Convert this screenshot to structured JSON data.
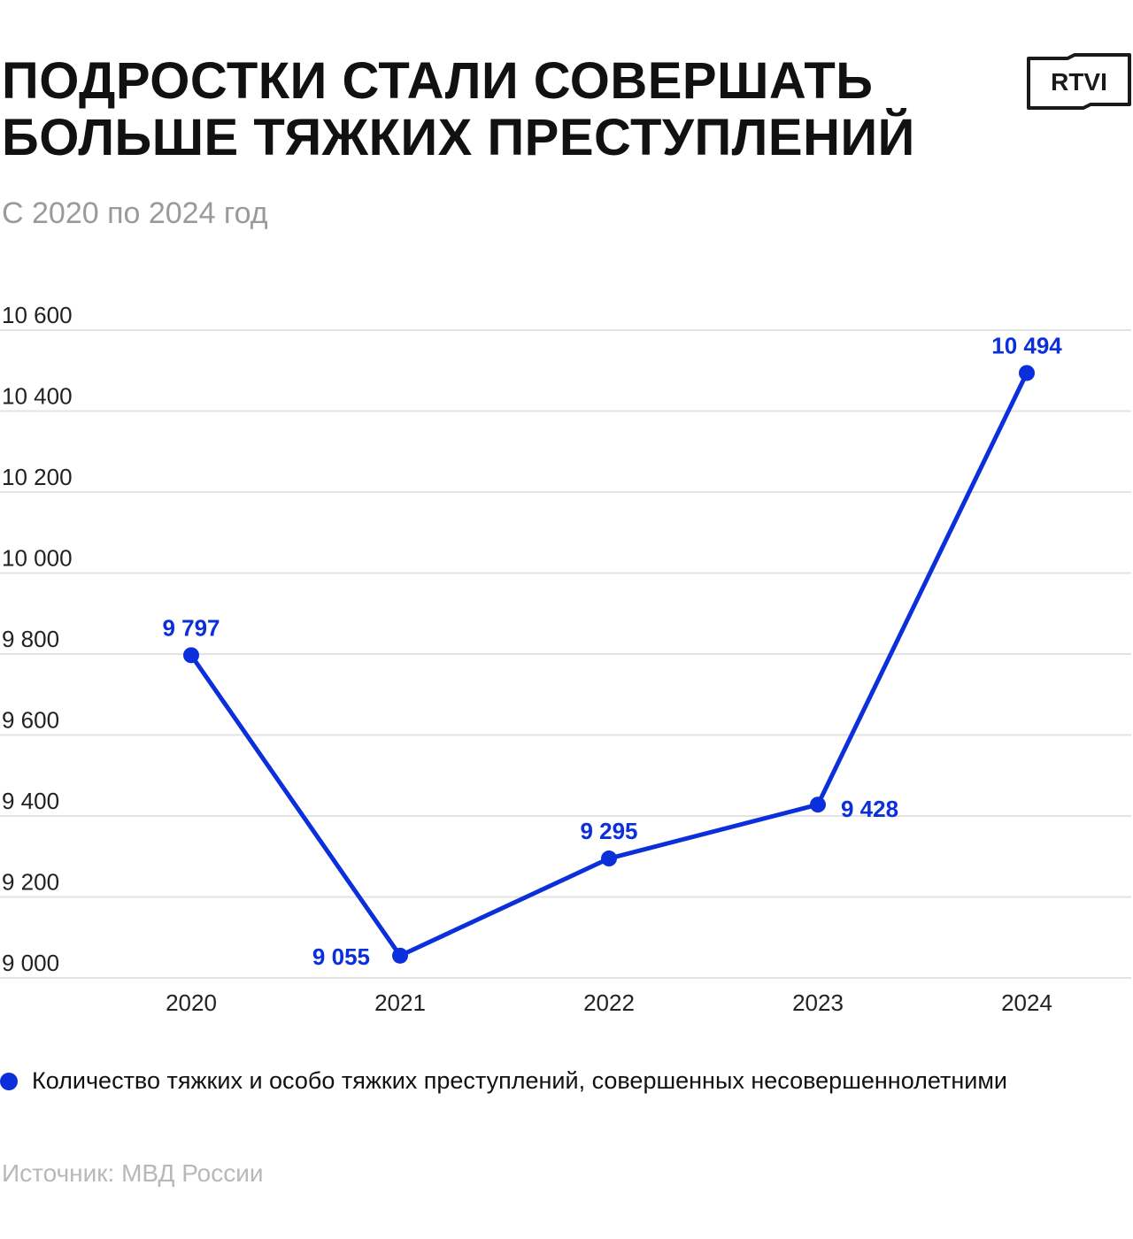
{
  "header": {
    "title_line1": "ПОДРОСТКИ СТАЛИ СОВЕРШАТЬ",
    "title_line2": "БОЛЬШЕ ТЯЖКИХ ПРЕСТУПЛЕНИЙ",
    "subtitle": "С 2020 по 2024 год",
    "logo_text": "RTVI"
  },
  "chart_data": {
    "type": "line",
    "x": [
      "2020",
      "2021",
      "2022",
      "2023",
      "2024"
    ],
    "series": [
      {
        "name": "Количество тяжких и особо тяжких преступлений, совершенных несовершеннолетними",
        "values": [
          9797,
          9055,
          9295,
          9428,
          10494
        ],
        "labels": [
          "9 797",
          "9 055",
          "9 295",
          "9 428",
          "10 494"
        ]
      }
    ],
    "ylim": [
      9000,
      10600
    ],
    "yticks": [
      9000,
      9200,
      9400,
      9600,
      9800,
      10000,
      10200,
      10400,
      10600
    ],
    "ytick_labels": [
      "9 000",
      "9 200",
      "9 400",
      "9 600",
      "9 800",
      "10 000",
      "10 200",
      "10 400",
      "10 600"
    ],
    "grid": true,
    "legend_position": "bottom-left"
  },
  "colors": {
    "series": "#0a2fdb",
    "grid": "#e3e3e3",
    "axis_text": "#222222"
  },
  "legend": {
    "label": "Количество тяжких и особо тяжких преступлений, совершенных несовершеннолетними"
  },
  "footer": {
    "source": "Источник: МВД России"
  }
}
